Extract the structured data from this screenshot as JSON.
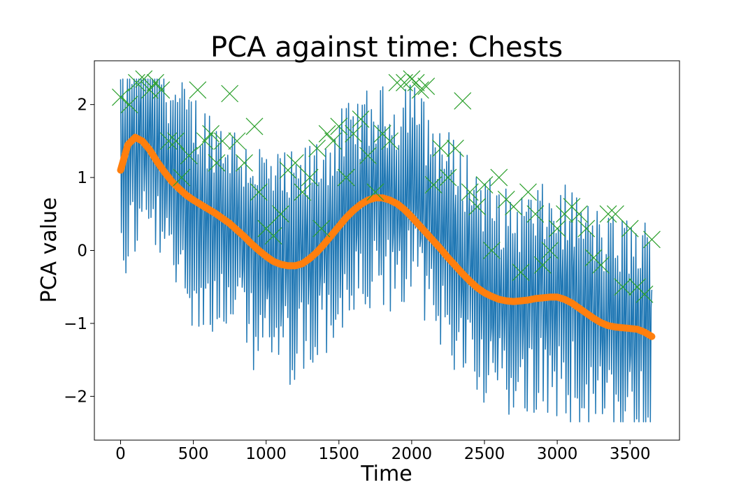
{
  "chart_data": {
    "type": "line",
    "title": "PCA against time: Chests",
    "xlabel": "Time",
    "ylabel": "PCA value",
    "xlim": [
      -180,
      3840
    ],
    "ylim": [
      -2.6,
      2.6
    ],
    "xticks": [
      0,
      500,
      1000,
      1500,
      2000,
      2500,
      3000,
      3500
    ],
    "yticks": [
      -2,
      -1,
      0,
      1,
      2
    ],
    "grid": false,
    "legend": "none",
    "series": [
      {
        "kind": "raw",
        "color": "#1f77b4",
        "line_width": 1.5,
        "anchors": {
          "x": [
            0,
            50,
            100,
            150,
            200,
            250,
            300,
            350,
            400,
            450,
            500,
            550,
            600,
            650,
            700,
            750,
            800,
            850,
            900,
            950,
            1000,
            1050,
            1100,
            1150,
            1200,
            1250,
            1300,
            1350,
            1400,
            1450,
            1500,
            1550,
            1600,
            1650,
            1700,
            1750,
            1800,
            1850,
            1900,
            1950,
            2000,
            2050,
            2100,
            2150,
            2200,
            2250,
            2300,
            2350,
            2400,
            2450,
            2500,
            2550,
            2600,
            2650,
            2700,
            2750,
            2800,
            2850,
            2900,
            2950,
            3000,
            3050,
            3100,
            3150,
            3200,
            3250,
            3300,
            3350,
            3400,
            3450,
            3500,
            3550,
            3600,
            3650
          ],
          "y": [
            1.1,
            1.3,
            1.5,
            1.55,
            1.5,
            1.4,
            1.2,
            1.0,
            0.85,
            0.7,
            0.65,
            0.55,
            0.45,
            0.4,
            0.35,
            0.3,
            0.2,
            0.1,
            0.05,
            0.0,
            -0.1,
            -0.15,
            -0.2,
            -0.2,
            -0.2,
            -0.15,
            -0.05,
            0.05,
            0.15,
            0.25,
            0.35,
            0.45,
            0.55,
            0.6,
            0.65,
            0.7,
            0.7,
            0.7,
            0.65,
            0.9,
            1.0,
            0.7,
            0.45,
            0.35,
            0.25,
            0.1,
            0.0,
            -0.1,
            -0.2,
            -0.3,
            -0.45,
            -0.55,
            -0.65,
            -0.7,
            -0.7,
            -0.7,
            -0.7,
            -0.65,
            -0.65,
            -0.65,
            -0.65,
            -0.65,
            -0.7,
            -0.75,
            -0.85,
            -0.9,
            -1.0,
            -1.05,
            -1.05,
            -1.05,
            -1.05,
            -1.1,
            -1.1,
            -1.2
          ]
        },
        "amplitude_approx": 1.3,
        "points_approx": 700
      },
      {
        "kind": "smoothed",
        "color": "#ff7f0e",
        "line_width": 10,
        "x": [
          0,
          50,
          100,
          150,
          200,
          250,
          300,
          350,
          400,
          450,
          500,
          550,
          600,
          650,
          700,
          750,
          800,
          850,
          900,
          950,
          1000,
          1050,
          1100,
          1150,
          1200,
          1250,
          1300,
          1350,
          1400,
          1450,
          1500,
          1550,
          1600,
          1650,
          1700,
          1750,
          1800,
          1850,
          1900,
          1950,
          2000,
          2050,
          2100,
          2150,
          2200,
          2250,
          2300,
          2350,
          2400,
          2450,
          2500,
          2550,
          2600,
          2650,
          2700,
          2750,
          2800,
          2850,
          2900,
          2950,
          3000,
          3050,
          3100,
          3150,
          3200,
          3250,
          3300,
          3350,
          3400,
          3450,
          3500,
          3550,
          3600,
          3650
        ],
        "y": [
          1.1,
          1.45,
          1.55,
          1.5,
          1.38,
          1.22,
          1.08,
          0.95,
          0.85,
          0.76,
          0.69,
          0.63,
          0.57,
          0.51,
          0.44,
          0.37,
          0.28,
          0.19,
          0.09,
          0.0,
          -0.08,
          -0.15,
          -0.19,
          -0.21,
          -0.21,
          -0.18,
          -0.11,
          -0.02,
          0.09,
          0.21,
          0.33,
          0.45,
          0.55,
          0.63,
          0.69,
          0.72,
          0.72,
          0.69,
          0.64,
          0.56,
          0.46,
          0.35,
          0.24,
          0.13,
          0.02,
          -0.1,
          -0.21,
          -0.32,
          -0.42,
          -0.51,
          -0.58,
          -0.63,
          -0.67,
          -0.69,
          -0.7,
          -0.69,
          -0.68,
          -0.66,
          -0.65,
          -0.64,
          -0.64,
          -0.67,
          -0.72,
          -0.79,
          -0.86,
          -0.93,
          -0.99,
          -1.03,
          -1.05,
          -1.06,
          -1.07,
          -1.08,
          -1.12,
          -1.18
        ]
      },
      {
        "kind": "peaks",
        "color": "#2ca02c",
        "marker": "x",
        "x": [
          0,
          60,
          110,
          160,
          200,
          240,
          280,
          330,
          380,
          420,
          470,
          530,
          580,
          620,
          660,
          700,
          750,
          800,
          850,
          920,
          950,
          1000,
          1050,
          1100,
          1150,
          1200,
          1250,
          1300,
          1350,
          1380,
          1420,
          1460,
          1500,
          1550,
          1600,
          1650,
          1700,
          1750,
          1800,
          1850,
          1900,
          1950,
          2000,
          2030,
          2060,
          2100,
          2150,
          2200,
          2250,
          2300,
          2350,
          2400,
          2450,
          2500,
          2550,
          2600,
          2650,
          2700,
          2750,
          2800,
          2850,
          2900,
          2950,
          3000,
          3050,
          3100,
          3150,
          3200,
          3250,
          3300,
          3350,
          3400,
          3450,
          3500,
          3550,
          3600,
          3650
        ],
        "y": [
          2.1,
          2.0,
          2.3,
          2.35,
          2.2,
          2.3,
          2.2,
          1.5,
          1.5,
          1.0,
          1.3,
          2.2,
          1.5,
          1.6,
          1.2,
          1.5,
          2.15,
          1.5,
          1.2,
          1.7,
          0.8,
          0.3,
          0.2,
          0.5,
          1.1,
          1.2,
          0.8,
          1.0,
          1.4,
          0.3,
          1.6,
          1.5,
          1.7,
          1.0,
          1.6,
          1.8,
          1.3,
          0.8,
          1.6,
          1.5,
          2.3,
          2.3,
          2.35,
          2.3,
          2.2,
          2.25,
          0.9,
          1.4,
          1.0,
          1.4,
          2.05,
          0.8,
          0.6,
          0.9,
          -0.0,
          1.0,
          0.7,
          0.6,
          -0.3,
          0.8,
          0.5,
          -0.2,
          0.0,
          0.3,
          0.5,
          0.6,
          0.5,
          0.3,
          -0.1,
          -0.2,
          0.5,
          0.5,
          -0.5,
          0.3,
          -0.5,
          -0.6,
          0.15
        ]
      }
    ]
  }
}
